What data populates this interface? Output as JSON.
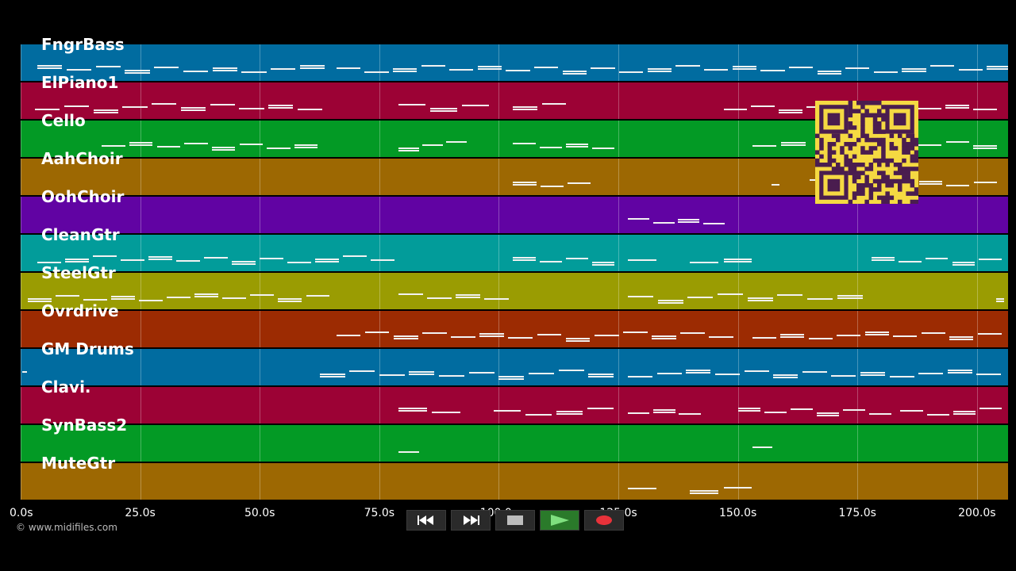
{
  "tracks": [
    {
      "name": "FngrBass",
      "color": "#016ca0"
    },
    {
      "name": "ElPiano1",
      "color": "#9c0235"
    },
    {
      "name": "Cello",
      "color": "#039a25"
    },
    {
      "name": "AahChoir",
      "color": "#9d6802"
    },
    {
      "name": "OohChoir",
      "color": "#6103a3"
    },
    {
      "name": "CleanGtr",
      "color": "#029c9a"
    },
    {
      "name": "SteelGtr",
      "color": "#9a9c02"
    },
    {
      "name": "Ovrdrive",
      "color": "#9c2b02"
    },
    {
      "name": "GM Drums",
      "color": "#016ca0"
    },
    {
      "name": "Clavi.",
      "color": "#9c0235"
    },
    {
      "name": "SynBass2",
      "color": "#039a25"
    },
    {
      "name": "MuteGtr",
      "color": "#9d6802"
    }
  ],
  "time_axis": {
    "ticks": [
      "0.0s",
      "25.0s",
      "50.0s",
      "75.0s",
      "100.0s",
      "125.0s",
      "150.0s",
      "175.0s",
      "200.0s"
    ],
    "tick_values": [
      0,
      25,
      50,
      75,
      100,
      125,
      150,
      175,
      200
    ],
    "range": [
      0,
      206.5
    ]
  },
  "note_segments": [
    [
      [
        3.5,
        64.5
      ],
      [
        66,
        208
      ]
    ],
    [
      [
        3,
        64
      ],
      [
        79,
        99
      ],
      [
        103,
        115
      ],
      [
        147,
        205
      ]
    ],
    [
      [
        17,
        63
      ],
      [
        79,
        94
      ],
      [
        103,
        125
      ],
      [
        153,
        165
      ],
      [
        182,
        205
      ]
    ],
    [
      [
        103,
        120
      ],
      [
        157,
        159
      ],
      [
        165,
        205
      ]
    ],
    [
      [
        127,
        148
      ]
    ],
    [
      [
        3.5,
        79
      ],
      [
        103,
        125
      ],
      [
        127,
        134
      ],
      [
        140,
        154
      ],
      [
        178,
        206
      ]
    ],
    [
      [
        1.5,
        65.5
      ],
      [
        79,
        103
      ],
      [
        127,
        177
      ],
      [
        204,
        206
      ]
    ],
    [
      [
        66,
        150
      ],
      [
        153,
        206
      ]
    ],
    [
      [
        0.3,
        1.5
      ],
      [
        62.5,
        125
      ],
      [
        127,
        206
      ]
    ],
    [
      [
        79,
        93
      ],
      [
        99,
        125
      ],
      [
        127,
        143
      ],
      [
        150,
        183
      ],
      [
        184,
        206
      ]
    ],
    [
      [
        79,
        84
      ],
      [
        153,
        158
      ]
    ],
    [
      [
        127,
        134
      ],
      [
        140,
        154
      ]
    ]
  ],
  "qr": {
    "color": "#f5d942",
    "module_color": "#4a1d4f"
  },
  "copyright": "© www.midifiles.com",
  "transport": {
    "rewind": {
      "icon": "rewind-icon"
    },
    "forward": {
      "icon": "fast-forward-icon"
    },
    "stop": {
      "icon": "stop-icon"
    },
    "play": {
      "icon": "play-icon"
    },
    "record": {
      "icon": "record-icon"
    }
  }
}
